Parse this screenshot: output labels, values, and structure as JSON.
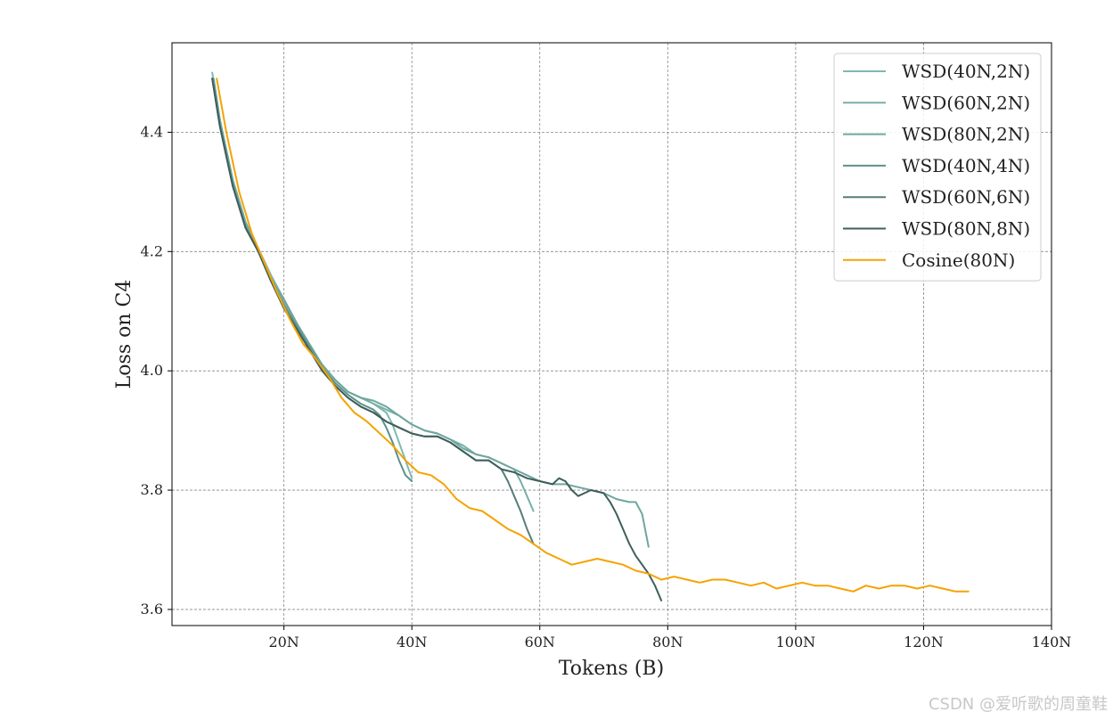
{
  "chart_data": {
    "type": "line",
    "xlabel": "Tokens (B)",
    "ylabel": "Loss on C4",
    "xlim": [
      2.5,
      140
    ],
    "ylim": [
      3.573,
      4.55
    ],
    "xticks": [
      20,
      40,
      60,
      80,
      100,
      120,
      140
    ],
    "xtick_labels": [
      "20N",
      "40N",
      "60N",
      "80N",
      "100N",
      "120N",
      "140N"
    ],
    "yticks": [
      3.6,
      3.8,
      4.0,
      4.2,
      4.4
    ],
    "ytick_labels": [
      "3.6",
      "3.8",
      "4.0",
      "4.2",
      "4.4"
    ],
    "grid": true,
    "legend_position": "top-right",
    "series": [
      {
        "name": "WSD(40N,2N)",
        "color": "#7fb9b1",
        "x": [
          8.8,
          10,
          12,
          14,
          16,
          18,
          20,
          22,
          24,
          26,
          28,
          30,
          32,
          34,
          36,
          37,
          38,
          39,
          40
        ],
        "y": [
          4.5,
          4.42,
          4.32,
          4.25,
          4.205,
          4.16,
          4.12,
          4.08,
          4.04,
          4.01,
          3.985,
          3.965,
          3.955,
          3.945,
          3.93,
          3.91,
          3.88,
          3.85,
          3.82
        ]
      },
      {
        "name": "WSD(60N,2N)",
        "color": "#77b0a8",
        "x": [
          9,
          10,
          12,
          14,
          16,
          18,
          20,
          22,
          24,
          26,
          28,
          30,
          32,
          34,
          36,
          38,
          40,
          42,
          44,
          46,
          48,
          50,
          52,
          54,
          56,
          57,
          58,
          59
        ],
        "y": [
          4.49,
          4.42,
          4.32,
          4.25,
          4.2,
          4.155,
          4.115,
          4.075,
          4.04,
          4.01,
          3.985,
          3.965,
          3.955,
          3.945,
          3.935,
          3.925,
          3.91,
          3.9,
          3.895,
          3.885,
          3.875,
          3.86,
          3.855,
          3.845,
          3.835,
          3.815,
          3.79,
          3.765
        ]
      },
      {
        "name": "WSD(80N,2N)",
        "color": "#6ea69f",
        "x": [
          9,
          10,
          12,
          14,
          16,
          18,
          20,
          22,
          24,
          26,
          28,
          30,
          32,
          34,
          36,
          38,
          40,
          42,
          44,
          46,
          48,
          50,
          52,
          54,
          56,
          58,
          60,
          62,
          64,
          66,
          68,
          70,
          72,
          74,
          75,
          76,
          77
        ],
        "y": [
          4.49,
          4.42,
          4.32,
          4.245,
          4.2,
          4.155,
          4.12,
          4.08,
          4.045,
          4.01,
          3.985,
          3.965,
          3.955,
          3.95,
          3.94,
          3.925,
          3.91,
          3.9,
          3.895,
          3.885,
          3.87,
          3.86,
          3.855,
          3.845,
          3.835,
          3.825,
          3.815,
          3.81,
          3.81,
          3.805,
          3.8,
          3.795,
          3.785,
          3.78,
          3.78,
          3.76,
          3.705
        ]
      },
      {
        "name": "WSD(40N,4N)",
        "color": "#5d918b",
        "x": [
          8.8,
          10,
          12,
          14,
          16,
          18,
          20,
          22,
          24,
          26,
          28,
          30,
          32,
          34,
          35,
          36,
          37,
          38,
          39,
          40
        ],
        "y": [
          4.49,
          4.41,
          4.31,
          4.24,
          4.2,
          4.15,
          4.11,
          4.075,
          4.04,
          4.005,
          3.98,
          3.96,
          3.945,
          3.935,
          3.925,
          3.905,
          3.88,
          3.85,
          3.825,
          3.815
        ]
      },
      {
        "name": "WSD(60N,6N)",
        "color": "#557e79",
        "x": [
          8.8,
          10,
          12,
          14,
          16,
          18,
          20,
          22,
          24,
          26,
          28,
          30,
          32,
          34,
          36,
          38,
          40,
          42,
          44,
          46,
          48,
          50,
          52,
          54,
          55,
          56,
          57,
          58,
          59
        ],
        "y": [
          4.49,
          4.41,
          4.31,
          4.24,
          4.2,
          4.15,
          4.105,
          4.07,
          4.035,
          4.0,
          3.975,
          3.955,
          3.94,
          3.93,
          3.915,
          3.905,
          3.895,
          3.89,
          3.89,
          3.88,
          3.865,
          3.85,
          3.85,
          3.835,
          3.815,
          3.79,
          3.765,
          3.735,
          3.71
        ]
      },
      {
        "name": "WSD(80N,8N)",
        "color": "#3f5f5b",
        "x": [
          8.8,
          10,
          12,
          14,
          16,
          18,
          20,
          22,
          24,
          26,
          28,
          30,
          32,
          34,
          36,
          38,
          40,
          42,
          44,
          46,
          48,
          50,
          52,
          54,
          56,
          58,
          60,
          62,
          63,
          64,
          65,
          66,
          68,
          70,
          71,
          72,
          73,
          74,
          75,
          76,
          77,
          78,
          79
        ],
        "y": [
          4.49,
          4.41,
          4.31,
          4.24,
          4.2,
          4.15,
          4.105,
          4.07,
          4.035,
          4.0,
          3.975,
          3.955,
          3.94,
          3.93,
          3.915,
          3.905,
          3.895,
          3.89,
          3.89,
          3.88,
          3.865,
          3.85,
          3.85,
          3.835,
          3.83,
          3.82,
          3.815,
          3.81,
          3.82,
          3.815,
          3.8,
          3.79,
          3.8,
          3.795,
          3.78,
          3.76,
          3.735,
          3.71,
          3.69,
          3.675,
          3.66,
          3.64,
          3.615
        ]
      },
      {
        "name": "Cosine(80N)",
        "color": "#f5a300",
        "x": [
          9.5,
          11,
          13,
          15,
          17,
          19,
          21,
          23,
          25,
          27,
          29,
          31,
          33,
          35,
          37,
          39,
          41,
          43,
          45,
          47,
          49,
          51,
          53,
          55,
          57,
          59,
          61,
          63,
          65,
          67,
          69,
          71,
          73,
          75,
          77,
          79,
          81,
          83,
          85,
          87,
          89,
          91,
          93,
          95,
          97,
          99,
          101,
          103,
          105,
          107,
          109,
          111,
          113,
          115,
          117,
          119,
          121,
          123,
          125,
          127
        ],
        "y": [
          4.49,
          4.4,
          4.3,
          4.23,
          4.18,
          4.13,
          4.085,
          4.045,
          4.02,
          3.99,
          3.955,
          3.93,
          3.915,
          3.895,
          3.875,
          3.85,
          3.83,
          3.825,
          3.81,
          3.785,
          3.77,
          3.765,
          3.75,
          3.735,
          3.725,
          3.71,
          3.695,
          3.685,
          3.675,
          3.68,
          3.685,
          3.68,
          3.675,
          3.665,
          3.66,
          3.65,
          3.655,
          3.65,
          3.645,
          3.65,
          3.65,
          3.645,
          3.64,
          3.645,
          3.635,
          3.64,
          3.645,
          3.64,
          3.64,
          3.635,
          3.63,
          3.64,
          3.635,
          3.64,
          3.64,
          3.635,
          3.64,
          3.635,
          3.63,
          3.63
        ]
      }
    ]
  }
}
